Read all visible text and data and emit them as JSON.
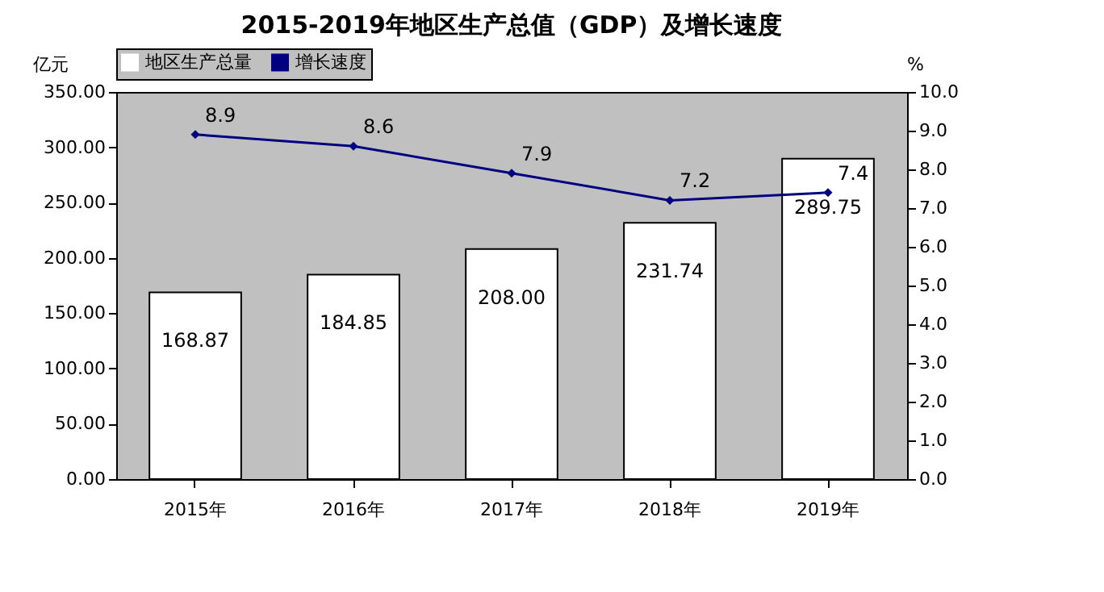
{
  "chart_data": {
    "type": "bar",
    "title": "2015-2019年地区生产总值（GDP）及增长速度",
    "ylabel": "亿元",
    "y2label": "%",
    "categories": [
      "2015年",
      "2016年",
      "2017年",
      "2018年",
      "2019年"
    ],
    "series": [
      {
        "name": "地区生产总量",
        "type": "bar",
        "color": "#ffffff",
        "values": [
          168.87,
          184.85,
          208.0,
          231.74,
          289.75
        ],
        "value_labels": [
          "168.87",
          "184.85",
          "208.00",
          "231.74",
          "289.75"
        ]
      },
      {
        "name": "增长速度",
        "type": "line",
        "axis": "y2",
        "color": "#000080",
        "values": [
          8.9,
          8.6,
          7.9,
          7.2,
          7.4
        ],
        "value_labels": [
          "8.9",
          "8.6",
          "7.9",
          "7.2",
          "7.4"
        ]
      }
    ],
    "ylim": [
      0,
      350
    ],
    "yticks": [
      {
        "value": 0,
        "label": "0.00"
      },
      {
        "value": 50,
        "label": "50.00"
      },
      {
        "value": 100,
        "label": "100.00"
      },
      {
        "value": 150,
        "label": "150.00"
      },
      {
        "value": 200,
        "label": "200.00"
      },
      {
        "value": 250,
        "label": "250.00"
      },
      {
        "value": 300,
        "label": "300.00"
      },
      {
        "value": 350,
        "label": "350.00"
      }
    ],
    "y2lim": [
      0,
      10
    ],
    "y2ticks": [
      {
        "value": 0,
        "label": "0.0"
      },
      {
        "value": 1,
        "label": "1.0"
      },
      {
        "value": 2,
        "label": "2.0"
      },
      {
        "value": 3,
        "label": "3.0"
      },
      {
        "value": 4,
        "label": "4.0"
      },
      {
        "value": 5,
        "label": "5.0"
      },
      {
        "value": 6,
        "label": "6.0"
      },
      {
        "value": 7,
        "label": "7.0"
      },
      {
        "value": 8,
        "label": "8.0"
      },
      {
        "value": 9,
        "label": "9.0"
      },
      {
        "value": 10,
        "label": "10.0"
      }
    ],
    "grid": false,
    "legend": "top",
    "marker": "diamond",
    "line_style": "solid"
  }
}
